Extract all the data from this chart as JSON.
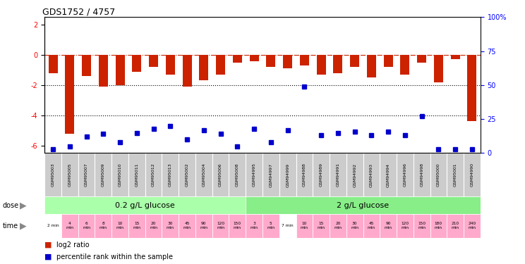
{
  "title": "GDS1752 / 4757",
  "samples": [
    "GSM95003",
    "GSM95005",
    "GSM95007",
    "GSM95009",
    "GSM95010",
    "GSM95011",
    "GSM95012",
    "GSM95013",
    "GSM95002",
    "GSM95004",
    "GSM95006",
    "GSM95008",
    "GSM94995",
    "GSM94997",
    "GSM94999",
    "GSM94988",
    "GSM94989",
    "GSM94991",
    "GSM94992",
    "GSM94993",
    "GSM94994",
    "GSM94996",
    "GSM94998",
    "GSM95000",
    "GSM95001",
    "GSM94990"
  ],
  "log2_ratio": [
    -1.2,
    -5.2,
    -1.4,
    -2.1,
    -2.0,
    -1.1,
    -0.8,
    -1.3,
    -2.1,
    -1.7,
    -1.3,
    -0.5,
    -0.4,
    -0.8,
    -0.9,
    -0.7,
    -1.3,
    -1.2,
    -0.8,
    -1.5,
    -0.8,
    -1.3,
    -0.5,
    -1.8,
    -0.3,
    -4.4
  ],
  "percentile_rank": [
    3,
    5,
    12,
    14,
    8,
    15,
    18,
    20,
    10,
    17,
    14,
    5,
    18,
    8,
    17,
    49,
    13,
    15,
    16,
    13,
    16,
    13,
    27,
    3,
    3,
    3
  ],
  "time_labels": [
    "2 min",
    "4\nmin",
    "6\nmin",
    "8\nmin",
    "10\nmin",
    "15\nmin",
    "20\nmin",
    "30\nmin",
    "45\nmin",
    "90\nmin",
    "120\nmin",
    "150\nmin",
    "3\nmin",
    "5\nmin",
    "7 min",
    "10\nmin",
    "15\nmin",
    "20\nmin",
    "30\nmin",
    "45\nmin",
    "90\nmin",
    "120\nmin",
    "150\nmin",
    "180\nmin",
    "210\nmin",
    "240\nmin"
  ],
  "time_bg_colors": [
    "#FFFFFF",
    "#FFAACC",
    "#FFAACC",
    "#FFAACC",
    "#FFAACC",
    "#FFAACC",
    "#FFAACC",
    "#FFAACC",
    "#FFAACC",
    "#FFAACC",
    "#FFAACC",
    "#FFAACC",
    "#FFAACC",
    "#FFAACC",
    "#FFFFFF",
    "#FFAACC",
    "#FFAACC",
    "#FFAACC",
    "#FFAACC",
    "#FFAACC",
    "#FFAACC",
    "#FFAACC",
    "#FFAACC",
    "#FFAACC",
    "#FFAACC",
    "#FFAACC"
  ],
  "dose_groups": [
    {
      "label": "0.2 g/L glucose",
      "start": 0,
      "end": 12,
      "color": "#AAFFAA"
    },
    {
      "label": "2 g/L glucose",
      "start": 12,
      "end": 26,
      "color": "#88EE88"
    }
  ],
  "bar_color": "#CC2200",
  "square_color": "#0000CC",
  "dashed_line_color": "#CC2200",
  "dotted_line_color": "#000000",
  "background_color": "#FFFFFF",
  "sample_bg_color": "#CCCCCC",
  "ylim_left": [
    -6.5,
    2.5
  ],
  "ylim_right": [
    0,
    100
  ],
  "yticks_left": [
    -6,
    -4,
    -2,
    0,
    2
  ],
  "yticks_right": [
    0,
    25,
    50,
    75,
    100
  ]
}
